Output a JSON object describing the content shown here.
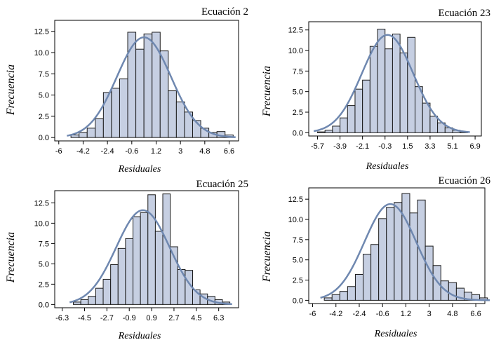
{
  "chart_data": [
    {
      "type": "bar",
      "title": "Ecuación 2",
      "xlabel": "Residuales",
      "ylabel": "Frecuencia",
      "x_ticks": [
        -6,
        -4.2,
        -2.4,
        -0.6,
        1.2,
        3,
        4.8,
        6.6
      ],
      "x_tick_labels": [
        "-6",
        "-4.2",
        "-2.4",
        "-0.6",
        "1.2",
        "3",
        "4.8",
        "6.6"
      ],
      "xlim": [
        -6.3,
        7.3
      ],
      "y_ticks": [
        0,
        2.5,
        5,
        7.5,
        10,
        12.5
      ],
      "y_tick_labels": [
        "0.0",
        "2.5",
        "5.0",
        "7.5",
        "10.0",
        "12.5"
      ],
      "ylim": [
        -0.4,
        13.8
      ],
      "bin_width": 0.6,
      "bin_start": -5.1,
      "values": [
        0.3,
        0.6,
        1.1,
        2.2,
        5.3,
        5.8,
        6.9,
        12.4,
        10.4,
        12.2,
        12.4,
        10.2,
        5.5,
        4.2,
        3.0,
        2.0,
        1.1,
        0.6,
        0.7,
        0.3
      ],
      "fit_curve": {
        "type": "normal",
        "mean": 0.3,
        "sd": 2.0,
        "peak": 11.8
      }
    },
    {
      "type": "bar",
      "title": "Ecuación 23",
      "xlabel": "Residuales",
      "ylabel": "Frecuencia",
      "x_ticks": [
        -5.7,
        -3.9,
        -2.1,
        -0.3,
        1.5,
        3.3,
        5.1,
        6.9
      ],
      "x_tick_labels": [
        "-5.7",
        "-3.9",
        "-2.1",
        "-0.3",
        "1.5",
        "3.3",
        "5.1",
        "6.9"
      ],
      "xlim": [
        -6.4,
        7.4
      ],
      "y_ticks": [
        0,
        2.5,
        5,
        7.5,
        10,
        12.5
      ],
      "y_tick_labels": [
        "0.0",
        "2.5",
        "5.0",
        "7.5",
        "10.0",
        "12.5"
      ],
      "ylim": [
        -0.4,
        13.5
      ],
      "bin_width": 0.6,
      "bin_start": -5.7,
      "values": [
        0.1,
        0.3,
        0.8,
        1.8,
        3.3,
        5.3,
        6.4,
        10.5,
        12.6,
        10.2,
        12.0,
        9.7,
        11.6,
        5.6,
        3.6,
        2.0,
        1.2,
        0.6,
        0.3,
        0.1
      ],
      "fit_curve": {
        "type": "normal",
        "mean": -0.1,
        "sd": 2.05,
        "peak": 11.9
      }
    },
    {
      "type": "bar",
      "title": "Ecuación 25",
      "xlabel": "Residuales",
      "ylabel": "Frecuencia",
      "x_ticks": [
        -6.3,
        -4.5,
        -2.7,
        -0.9,
        0.9,
        2.7,
        4.5,
        6.3
      ],
      "x_tick_labels": [
        "-6.3",
        "-4.5",
        "-2.7",
        "-0.9",
        "0.9",
        "2.7",
        "4.5",
        "6.3"
      ],
      "xlim": [
        -6.9,
        7.9
      ],
      "y_ticks": [
        0,
        2.5,
        5,
        7.5,
        10,
        12.5
      ],
      "y_tick_labels": [
        "0.0",
        "2.5",
        "5.0",
        "7.5",
        "10.0",
        "12.5"
      ],
      "ylim": [
        -0.4,
        14.0
      ],
      "bin_width": 0.6,
      "bin_start": -5.4,
      "values": [
        0.3,
        0.6,
        1.0,
        2.0,
        3.1,
        4.9,
        6.9,
        8.1,
        10.8,
        11.3,
        13.5,
        9.0,
        13.6,
        7.1,
        4.3,
        4.2,
        1.8,
        1.3,
        1.0,
        0.6,
        0.3
      ],
      "fit_curve": {
        "type": "normal",
        "mean": 0.2,
        "sd": 2.15,
        "peak": 11.6
      }
    },
    {
      "type": "bar",
      "title": "Ecuación 26",
      "xlabel": "Residuales",
      "ylabel": "Frecuencia",
      "x_ticks": [
        -6,
        -4.2,
        -2.4,
        -0.6,
        1.2,
        3,
        4.8,
        6.6
      ],
      "x_tick_labels": [
        "-6",
        "-4.2",
        "-2.4",
        "-0.6",
        "1.2",
        "3",
        "4.8",
        "6.6"
      ],
      "xlim": [
        -6.3,
        7.3
      ],
      "y_ticks": [
        0,
        2.5,
        5,
        7.5,
        10,
        12.5
      ],
      "y_tick_labels": [
        "0.0",
        "2.5",
        "5.0",
        "7.5",
        "10.0",
        "12.5"
      ],
      "ylim": [
        -0.4,
        13.9
      ],
      "bin_width": 0.6,
      "bin_start": -5.1,
      "values": [
        0.3,
        0.7,
        1.1,
        1.7,
        3.2,
        5.7,
        6.9,
        10.1,
        11.5,
        12.1,
        13.2,
        10.8,
        12.4,
        6.7,
        4.3,
        2.4,
        2.2,
        1.5,
        1.0,
        0.7,
        0.3
      ],
      "fit_curve": {
        "type": "normal",
        "mean": 0.0,
        "sd": 2.0,
        "peak": 11.9
      }
    }
  ]
}
